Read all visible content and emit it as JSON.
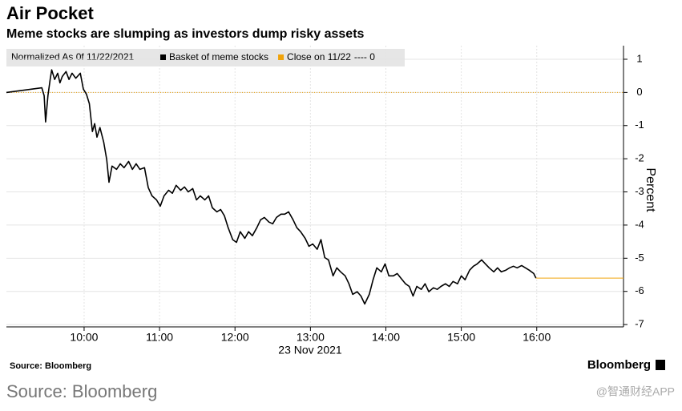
{
  "chart_data": {
    "type": "line",
    "title": "Air Pocket",
    "subtitle": "Meme stocks are slumping as investors dump risky assets",
    "legend_header": "Normalized As 0f 11/22/2021",
    "y_label": "Percent",
    "x_label": "23 Nov 2021",
    "source": "Source: Bloomberg",
    "brand": "Bloomberg",
    "footer_source": "Source: Bloomberg",
    "watermark": "@智通财经APP",
    "grid": true,
    "xlim": [
      8.97,
      17.15
    ],
    "ylim": [
      -7.07,
      1.41
    ],
    "xticks": [
      {
        "value": 10,
        "label": "10:00"
      },
      {
        "value": 11,
        "label": "11:00"
      },
      {
        "value": 12,
        "label": "12:00"
      },
      {
        "value": 13,
        "label": "13:00"
      },
      {
        "value": 14,
        "label": "14:00"
      },
      {
        "value": 15,
        "label": "15:00"
      },
      {
        "value": 16,
        "label": "16:00"
      }
    ],
    "yticks": [
      1,
      0,
      -1,
      -2,
      -3,
      -4,
      -5,
      -6,
      -7
    ],
    "reference_line": {
      "name": "Close on 11/22",
      "value": 0,
      "value_label": "---- 0",
      "color": "#f0a30a"
    },
    "series": [
      {
        "name": "Basket of meme stocks",
        "color": "#000000",
        "x": [
          8.97,
          9.44,
          9.47,
          9.49,
          9.52,
          9.55,
          9.57,
          9.61,
          9.65,
          9.68,
          9.71,
          9.76,
          9.8,
          9.84,
          9.89,
          9.95,
          9.99,
          10.03,
          10.07,
          10.11,
          10.14,
          10.17,
          10.21,
          10.26,
          10.3,
          10.33,
          10.37,
          10.43,
          10.48,
          10.53,
          10.59,
          10.64,
          10.69,
          10.74,
          10.8,
          10.85,
          10.9,
          10.96,
          11.01,
          11.06,
          11.12,
          11.17,
          11.22,
          11.28,
          11.33,
          11.38,
          11.44,
          11.49,
          11.54,
          11.6,
          11.65,
          11.7,
          11.76,
          11.81,
          11.86,
          11.91,
          11.97,
          12.02,
          12.07,
          12.13,
          12.18,
          12.23,
          12.29,
          12.34,
          12.39,
          12.45,
          12.5,
          12.55,
          12.61,
          12.66,
          12.71,
          12.77,
          12.82,
          12.87,
          12.93,
          12.98,
          13.03,
          13.09,
          13.14,
          13.19,
          13.24,
          13.3,
          13.35,
          13.4,
          13.46,
          13.51,
          13.56,
          13.62,
          13.67,
          13.72,
          13.78,
          13.83,
          13.88,
          13.94,
          13.99,
          14.04,
          14.1,
          14.15,
          14.2,
          14.26,
          14.31,
          14.36,
          14.41,
          14.47,
          14.52,
          14.57,
          14.63,
          14.68,
          14.73,
          14.79,
          14.84,
          14.89,
          14.95,
          15.0,
          15.05,
          15.11,
          15.16,
          15.21,
          15.27,
          15.32,
          15.37,
          15.43,
          15.48,
          15.53,
          15.59,
          15.64,
          15.69,
          15.74,
          15.8,
          15.85,
          15.9,
          15.96,
          15.99
        ],
        "values": [
          0,
          0.14,
          -0.1,
          -0.89,
          -0.1,
          0.39,
          0.68,
          0.39,
          0.58,
          0.29,
          0.48,
          0.63,
          0.39,
          0.58,
          0.43,
          0.58,
          0.1,
          -0.05,
          -0.34,
          -1.18,
          -0.94,
          -1.35,
          -1.06,
          -1.5,
          -2.03,
          -2.71,
          -2.22,
          -2.32,
          -2.15,
          -2.27,
          -2.08,
          -2.32,
          -2.15,
          -2.32,
          -2.27,
          -2.87,
          -3.12,
          -3.24,
          -3.43,
          -3.12,
          -2.95,
          -3.04,
          -2.8,
          -2.95,
          -2.85,
          -3.0,
          -2.9,
          -3.24,
          -3.12,
          -3.24,
          -3.12,
          -3.48,
          -3.6,
          -3.53,
          -3.72,
          -4.08,
          -4.44,
          -4.52,
          -4.2,
          -4.4,
          -4.2,
          -4.32,
          -4.08,
          -3.84,
          -3.77,
          -3.91,
          -3.96,
          -3.77,
          -3.67,
          -3.67,
          -3.6,
          -3.84,
          -4.08,
          -4.2,
          -4.4,
          -4.64,
          -4.57,
          -4.73,
          -4.44,
          -4.98,
          -5.05,
          -5.53,
          -5.29,
          -5.41,
          -5.53,
          -5.77,
          -6.09,
          -6.01,
          -6.14,
          -6.38,
          -6.09,
          -5.65,
          -5.29,
          -5.41,
          -5.17,
          -5.53,
          -5.53,
          -5.46,
          -5.6,
          -5.77,
          -5.85,
          -6.14,
          -5.85,
          -5.94,
          -5.77,
          -6.01,
          -5.89,
          -5.94,
          -5.85,
          -5.77,
          -5.85,
          -5.7,
          -5.77,
          -5.53,
          -5.65,
          -5.36,
          -5.24,
          -5.17,
          -5.05,
          -5.17,
          -5.29,
          -5.41,
          -5.29,
          -5.41,
          -5.36,
          -5.29,
          -5.24,
          -5.29,
          -5.22,
          -5.29,
          -5.36,
          -5.46,
          -5.6
        ]
      }
    ]
  }
}
